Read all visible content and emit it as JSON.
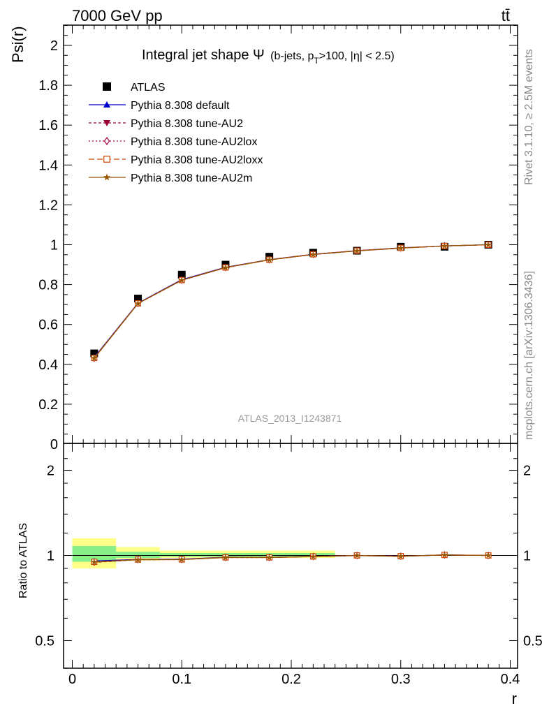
{
  "header": {
    "left": "7000 GeV pp",
    "right": "tt̄"
  },
  "side_labels": {
    "rivet": "Rivet 3.1.10, ≥ 2.5M events",
    "mcplots": "mcplots.cern.ch [arXiv:1306.3436]"
  },
  "chart_data": {
    "type": "line",
    "title_main": "Integral jet shape Ψ",
    "title_sub": "(b-jets, p",
    "title_sub_T": "T",
    "title_sub_rest": ">100, |η| < 2.5)",
    "xlabel": "r",
    "ylabel": "Psi(r)",
    "ratio_ylabel": "Ratio to ATLAS",
    "watermark": "ATLAS_2013_I1243871",
    "xlim": [
      -0.01,
      0.4
    ],
    "ylim": [
      0,
      2.1
    ],
    "ratio_ylim": [
      0.4,
      2.3
    ],
    "x_ticks": [
      "0",
      "0.1",
      "0.2",
      "0.3",
      "0.4"
    ],
    "y_ticks": [
      "0",
      "0.2",
      "0.4",
      "0.6",
      "0.8",
      "1",
      "1.2",
      "1.4",
      "1.6",
      "1.8",
      "2"
    ],
    "ratio_ticks": [
      "0.5",
      "1",
      "2"
    ],
    "x": [
      0.02,
      0.06,
      0.1,
      0.14,
      0.18,
      0.22,
      0.26,
      0.3,
      0.34,
      0.38
    ],
    "atlas": {
      "name": "ATLAS",
      "values": [
        0.455,
        0.73,
        0.85,
        0.9,
        0.94,
        0.96,
        0.97,
        0.99,
        0.99,
        1.0
      ],
      "band_inner": [
        [
          0.0,
          0.04,
          0.95,
          1.08
        ],
        [
          0.04,
          0.08,
          0.98,
          1.03
        ],
        [
          0.08,
          0.24,
          0.99,
          1.02
        ]
      ],
      "band_outer": [
        [
          0.0,
          0.04,
          0.9,
          1.15
        ],
        [
          0.04,
          0.08,
          0.96,
          1.07
        ],
        [
          0.08,
          0.24,
          0.98,
          1.04
        ]
      ]
    },
    "series": [
      {
        "name": "Pythia 8.308 default",
        "color": "#0000cc",
        "dash": "",
        "marker": "triangle-up",
        "values": [
          0.435,
          0.707,
          0.825,
          0.887,
          0.925,
          0.952,
          0.97,
          0.984,
          0.994,
          1.0
        ]
      },
      {
        "name": "Pythia 8.308 tune-AU2",
        "color": "#990033",
        "dash": "4,3",
        "marker": "triangle-down",
        "values": [
          0.43,
          0.705,
          0.822,
          0.885,
          0.924,
          0.951,
          0.969,
          0.983,
          0.994,
          1.0
        ]
      },
      {
        "name": "Pythia 8.308 tune-AU2lox",
        "color": "#aa0044",
        "dash": "2,3",
        "marker": "diamond",
        "values": [
          0.431,
          0.706,
          0.823,
          0.886,
          0.925,
          0.952,
          0.97,
          0.984,
          0.994,
          1.0
        ]
      },
      {
        "name": "Pythia 8.308 tune-AU2loxx",
        "color": "#cc4400",
        "dash": "8,4",
        "marker": "square",
        "values": [
          0.432,
          0.706,
          0.823,
          0.886,
          0.925,
          0.952,
          0.97,
          0.984,
          0.994,
          1.0
        ]
      },
      {
        "name": "Pythia 8.308 tune-AU2m",
        "color": "#995500",
        "dash": "",
        "marker": "star",
        "values": [
          0.431,
          0.705,
          0.822,
          0.885,
          0.924,
          0.951,
          0.969,
          0.983,
          0.994,
          1.0
        ]
      }
    ]
  }
}
